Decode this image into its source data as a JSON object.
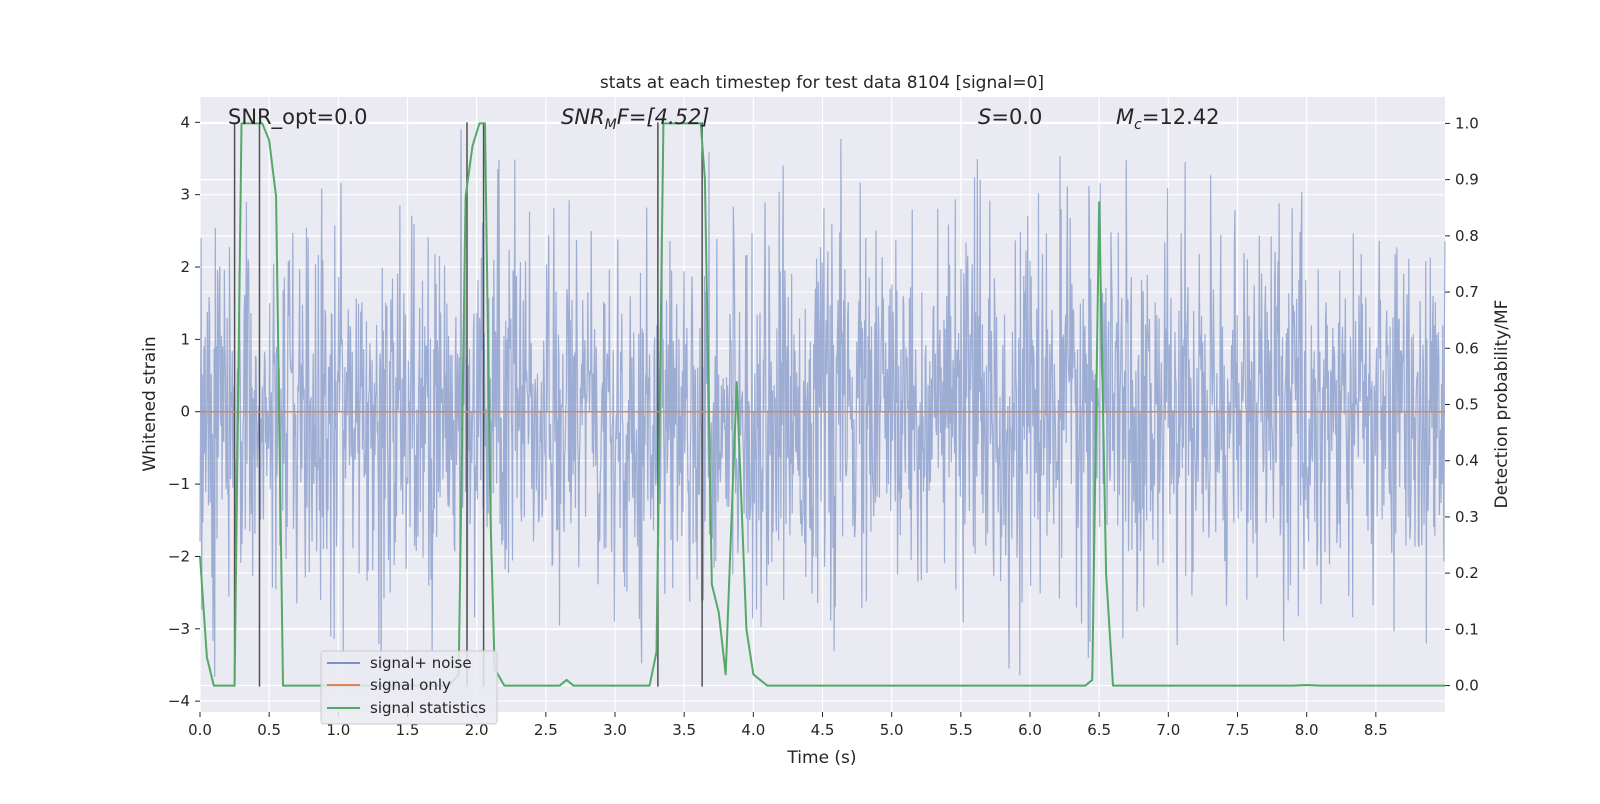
{
  "chart_data": {
    "type": "line",
    "title": "stats at each timestep for test data 8104 [signal=0]",
    "xlabel": "Time (s)",
    "ylabel": "Whitened strain",
    "y2label": "Detection probability/MF",
    "xlim": [
      0.0,
      9.0
    ],
    "ylim": [
      -4.15,
      4.35
    ],
    "y2lim": [
      -0.047,
      1.047
    ],
    "xticks": [
      "0.0",
      "0.5",
      "1.0",
      "1.5",
      "2.0",
      "2.5",
      "3.0",
      "3.5",
      "4.0",
      "4.5",
      "5.0",
      "5.5",
      "6.0",
      "6.5",
      "7.0",
      "7.5",
      "8.0",
      "8.5"
    ],
    "yticks": [
      "4",
      "3",
      "2",
      "1",
      "0",
      "−1",
      "−2",
      "−3",
      "−4"
    ],
    "y2ticks": [
      "1.0",
      "0.9",
      "0.8",
      "0.7",
      "0.6",
      "0.5",
      "0.4",
      "0.3",
      "0.2",
      "0.1",
      "0.0"
    ],
    "annotations": {
      "snr_opt": "SNR_opt=0.0",
      "snr_mf_sym": "SNR",
      "snr_mf_sub": "M",
      "snr_mf_val": "F=[4.52]",
      "s_sym": "S",
      "s_val": "=0.0",
      "mc_sym": "M",
      "mc_sub": "c",
      "mc_val": "=12.42"
    },
    "legend": {
      "placement": "lower-left",
      "entries": [
        "signal+ noise",
        "signal only",
        "signal statistics"
      ]
    },
    "series": [
      {
        "name": "signal+ noise",
        "color": "#7b92c6",
        "description": "whitened strain noise, roughly gaussian in [-4, 4]",
        "envelope": {
          "mean": 0.0,
          "typical_abs": 1.6,
          "max": 3.9,
          "min": -3.8
        }
      },
      {
        "name": "signal only",
        "color": "#dd8452",
        "x": [
          0.0,
          9.0
        ],
        "y": [
          0.0,
          0.0
        ]
      },
      {
        "name": "signal statistics",
        "color": "#55a868",
        "x": [
          0.0,
          0.05,
          0.1,
          0.25,
          0.3,
          0.35,
          0.42,
          0.45,
          0.5,
          0.55,
          0.6,
          1.8,
          1.87,
          1.92,
          1.97,
          2.02,
          2.06,
          2.1,
          2.13,
          2.2,
          2.55,
          2.6,
          2.65,
          2.7,
          3.25,
          3.3,
          3.35,
          3.4,
          3.62,
          3.65,
          3.7,
          3.75,
          3.8,
          3.88,
          3.95,
          4.0,
          4.05,
          4.1,
          6.4,
          6.45,
          6.5,
          6.55,
          6.6,
          6.7,
          7.9,
          8.0,
          8.1,
          9.0
        ],
        "y": [
          0.23,
          0.05,
          0.0,
          0.0,
          1.0,
          1.0,
          1.0,
          1.0,
          0.97,
          0.87,
          0.0,
          0.0,
          0.02,
          0.87,
          0.96,
          1.0,
          1.0,
          0.3,
          0.03,
          0.0,
          0.0,
          0.0,
          0.01,
          0.0,
          0.0,
          0.06,
          1.0,
          1.0,
          1.0,
          0.9,
          0.18,
          0.13,
          0.02,
          0.54,
          0.1,
          0.02,
          0.01,
          0.0,
          0.0,
          0.01,
          0.86,
          0.2,
          0.0,
          0.0,
          0.0,
          0.001,
          0.0,
          0.0
        ]
      }
    ],
    "vertical_markers": {
      "color": "#505050",
      "x": [
        0.25,
        0.43,
        1.93,
        2.05,
        3.31,
        3.63
      ],
      "y_top": [
        4.0,
        4.0,
        4.0,
        4.0,
        4.0,
        4.0
      ],
      "y_bottom": [
        -3.8,
        -3.8,
        -3.8,
        -3.8,
        -3.8,
        -3.8
      ]
    }
  }
}
